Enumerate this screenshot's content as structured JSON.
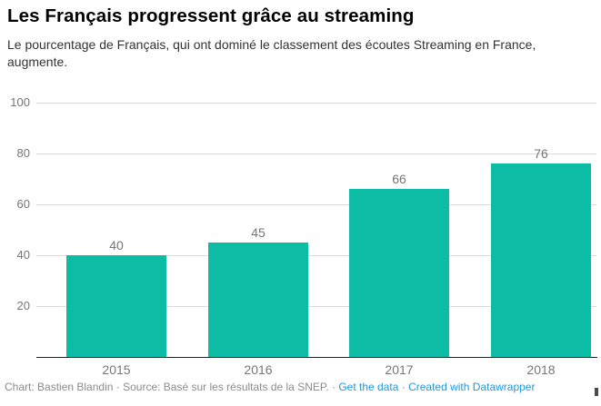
{
  "header": {
    "title": "Les Français progressent grâce au streaming",
    "subtitle": "Le pourcentage de Français, qui ont dominé le classement des écoutes Streaming en France, augmente."
  },
  "chart_data": {
    "type": "bar",
    "categories": [
      "2015",
      "2016",
      "2017",
      "2018"
    ],
    "values": [
      40,
      45,
      66,
      76
    ],
    "title": "Les Français progressent grâce au streaming",
    "xlabel": "",
    "ylabel": "",
    "ylim": [
      0,
      100
    ],
    "yticks": [
      20,
      40,
      60,
      80,
      100
    ],
    "grid": true,
    "legend": false,
    "value_labels": true,
    "bar_color": "#0cbca4"
  },
  "theme": {
    "title_color": "#000000",
    "subtitle_color": "#333333",
    "grid_color": "#dcdcdc",
    "axis_color": "#222222",
    "tick_color": "#767676",
    "footer_color": "#8c8c8c",
    "link_color": "#2398d8"
  },
  "footer": {
    "credit": "Chart: Bastien Blandin",
    "separator": "·",
    "source": "Source: Basé sur les résultats de la SNEP.",
    "links": [
      {
        "label": "Get the data"
      },
      {
        "label": "Created with Datawrapper"
      }
    ]
  }
}
